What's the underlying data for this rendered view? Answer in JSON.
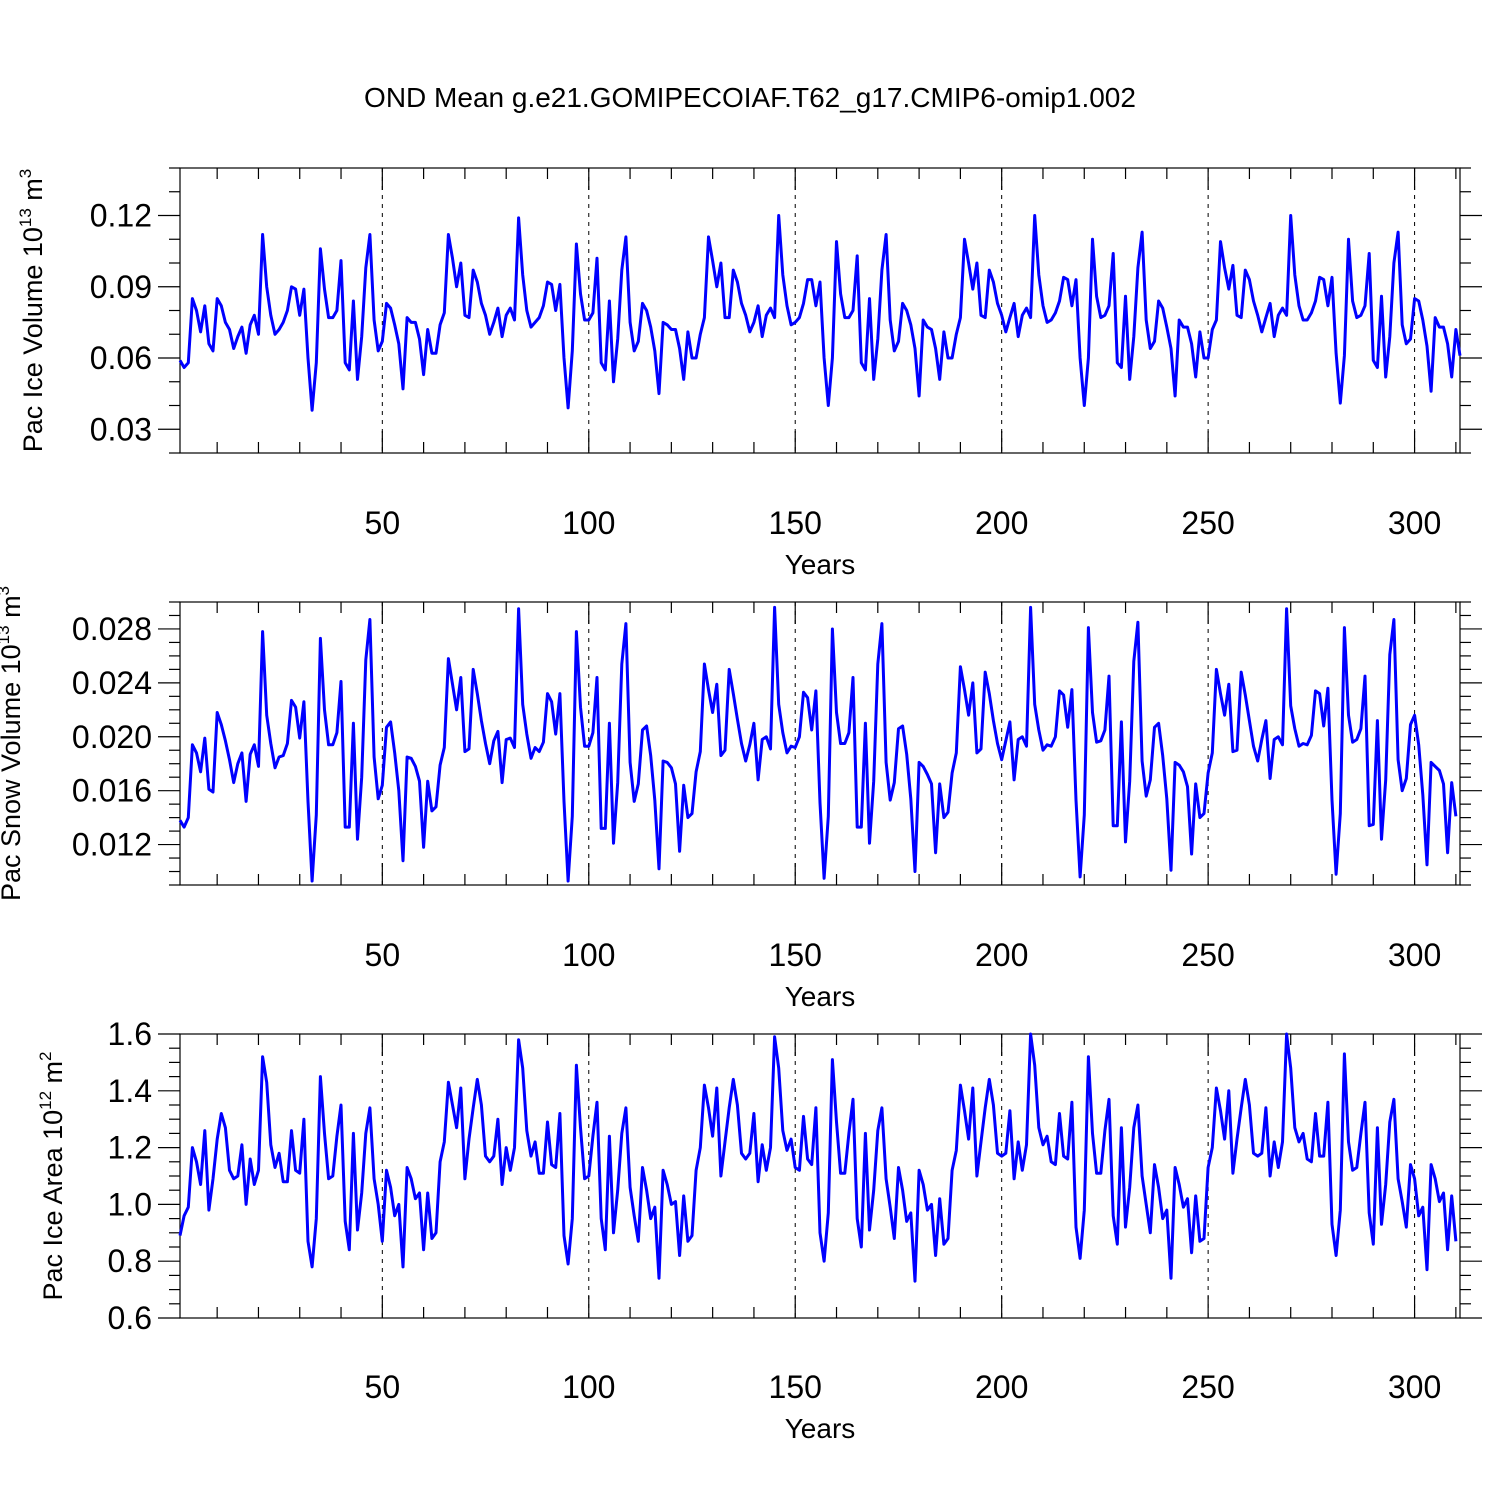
{
  "title": "OND Mean g.e21.GOMIPECOIAF.T62_g17.CMIP6-omip1.002",
  "colors": {
    "series": "#0000ff",
    "axis": "#000000"
  },
  "chart_data": [
    {
      "type": "line",
      "name": "pac-ice-volume",
      "ylabel": {
        "main": "Pac Ice Volume 10",
        "exp": "13",
        "unit": " m",
        "unit_exp": "3"
      },
      "xlabel": "Years",
      "xlim": [
        1,
        311
      ],
      "ylim": [
        0.02,
        0.14
      ],
      "xticks": [
        50,
        100,
        150,
        200,
        250,
        300
      ],
      "xtick_labels": [
        "50",
        "100",
        "150",
        "200",
        "250",
        "300"
      ],
      "yticks": [
        0.03,
        0.06,
        0.09,
        0.12
      ],
      "ytick_labels": [
        "0.03",
        "0.06",
        "0.09",
        "0.12"
      ],
      "y_minor_step": 0.01,
      "x_minor_step": 10,
      "grid": "dashed vertical at major x ticks",
      "x_start": 1,
      "values": [
        0.059,
        0.056,
        0.058,
        0.085,
        0.08,
        0.071,
        0.082,
        0.066,
        0.063,
        0.085,
        0.082,
        0.075,
        0.072,
        0.064,
        0.069,
        0.073,
        0.062,
        0.074,
        0.078,
        0.07,
        0.112,
        0.09,
        0.078,
        0.07,
        0.072,
        0.075,
        0.08,
        0.09,
        0.089,
        0.078,
        0.089,
        0.06,
        0.038,
        0.058,
        0.106,
        0.089,
        0.077,
        0.077,
        0.08,
        0.101,
        0.058,
        0.055,
        0.084,
        0.051,
        0.069,
        0.098,
        0.112,
        0.076,
        0.063,
        0.067,
        0.083,
        0.081,
        0.074,
        0.066,
        0.047,
        0.077,
        0.075,
        0.075,
        0.068,
        0.053,
        0.072,
        0.062,
        0.062,
        0.074,
        0.079,
        0.112,
        0.102,
        0.09,
        0.1,
        0.078,
        0.077,
        0.097,
        0.092,
        0.083,
        0.078,
        0.07,
        0.075,
        0.081,
        0.069,
        0.078,
        0.081,
        0.076,
        0.119,
        0.095,
        0.08,
        0.073,
        0.075,
        0.077,
        0.082,
        0.092,
        0.091,
        0.08,
        0.091,
        0.06,
        0.039,
        0.063,
        0.108,
        0.087,
        0.076,
        0.076,
        0.079,
        0.102,
        0.058,
        0.055,
        0.084,
        0.05,
        0.068,
        0.097,
        0.111,
        0.075,
        0.063,
        0.067,
        0.083,
        0.08,
        0.073,
        0.063,
        0.045,
        0.075,
        0.074,
        0.072,
        0.072,
        0.064,
        0.051,
        0.071,
        0.06,
        0.06,
        0.07,
        0.077,
        0.111,
        0.101,
        0.09,
        0.1,
        0.077,
        0.077,
        0.097,
        0.092,
        0.083,
        0.078,
        0.071,
        0.075,
        0.082,
        0.069,
        0.078,
        0.081,
        0.077,
        0.12,
        0.095,
        0.082,
        0.074,
        0.075,
        0.077,
        0.083,
        0.093,
        0.093,
        0.082,
        0.092,
        0.06,
        0.04,
        0.06,
        0.109,
        0.087,
        0.077,
        0.077,
        0.08,
        0.103,
        0.058,
        0.055,
        0.085,
        0.051,
        0.068,
        0.097,
        0.112,
        0.076,
        0.063,
        0.067,
        0.083,
        0.08,
        0.074,
        0.064,
        0.044,
        0.076,
        0.073,
        0.072,
        0.064,
        0.051,
        0.071,
        0.06,
        0.06,
        0.07,
        0.077,
        0.11,
        0.1,
        0.089,
        0.1,
        0.078,
        0.077,
        0.097,
        0.092,
        0.083,
        0.078,
        0.071,
        0.077,
        0.083,
        0.069,
        0.078,
        0.081,
        0.077,
        0.12,
        0.095,
        0.082,
        0.075,
        0.076,
        0.079,
        0.084,
        0.094,
        0.093,
        0.082,
        0.093,
        0.06,
        0.04,
        0.06,
        0.11,
        0.086,
        0.077,
        0.078,
        0.082,
        0.104,
        0.058,
        0.056,
        0.086,
        0.051,
        0.069,
        0.098,
        0.113,
        0.076,
        0.064,
        0.067,
        0.084,
        0.081,
        0.073,
        0.064,
        0.044,
        0.076,
        0.073,
        0.073,
        0.066,
        0.052,
        0.071,
        0.06,
        0.06,
        0.072,
        0.076,
        0.109,
        0.098,
        0.089,
        0.099,
        0.078,
        0.077,
        0.097,
        0.093,
        0.084,
        0.078,
        0.071,
        0.077,
        0.083,
        0.069,
        0.078,
        0.081,
        0.078,
        0.12,
        0.095,
        0.082,
        0.076,
        0.076,
        0.079,
        0.084,
        0.094,
        0.093,
        0.082,
        0.094,
        0.062,
        0.041,
        0.061,
        0.11,
        0.084,
        0.077,
        0.078,
        0.082,
        0.104,
        0.059,
        0.056,
        0.086,
        0.052,
        0.069,
        0.1,
        0.113,
        0.074,
        0.066,
        0.068,
        0.085,
        0.084,
        0.076,
        0.065,
        0.046,
        0.077,
        0.073,
        0.073,
        0.066,
        0.052,
        0.072,
        0.061
      ]
    },
    {
      "type": "line",
      "name": "pac-snow-volume",
      "ylabel": {
        "main": "Pac Snow Volume 10",
        "exp": "13",
        "unit": " m",
        "unit_exp": "3"
      },
      "xlabel": "Years",
      "xlim": [
        1,
        311
      ],
      "ylim": [
        0.009,
        0.03
      ],
      "xticks": [
        50,
        100,
        150,
        200,
        250,
        300
      ],
      "xtick_labels": [
        "50",
        "100",
        "150",
        "200",
        "250",
        "300"
      ],
      "yticks": [
        0.012,
        0.016,
        0.02,
        0.024,
        0.028
      ],
      "ytick_labels": [
        "0.012",
        "0.016",
        "0.020",
        "0.024",
        "0.028"
      ],
      "y_minor_step": 0.001,
      "x_minor_step": 10,
      "grid": "dashed vertical at major x ticks",
      "x_start": 1,
      "values": [
        0.0138,
        0.0133,
        0.014,
        0.0194,
        0.0188,
        0.0174,
        0.0199,
        0.0161,
        0.0159,
        0.0218,
        0.0209,
        0.0197,
        0.0183,
        0.0166,
        0.018,
        0.0188,
        0.0152,
        0.0187,
        0.0194,
        0.0178,
        0.0278,
        0.0216,
        0.0195,
        0.0177,
        0.0185,
        0.0186,
        0.0195,
        0.0227,
        0.0222,
        0.0199,
        0.0226,
        0.0152,
        0.0093,
        0.0142,
        0.0273,
        0.022,
        0.0194,
        0.0194,
        0.0203,
        0.0241,
        0.0133,
        0.0133,
        0.021,
        0.0124,
        0.017,
        0.0257,
        0.0287,
        0.0185,
        0.0154,
        0.0164,
        0.0207,
        0.0211,
        0.0188,
        0.016,
        0.0108,
        0.0185,
        0.0184,
        0.0178,
        0.0167,
        0.0118,
        0.0167,
        0.0145,
        0.0148,
        0.0179,
        0.0192,
        0.0258,
        0.0239,
        0.022,
        0.0244,
        0.0189,
        0.0191,
        0.025,
        0.0232,
        0.0212,
        0.0195,
        0.018,
        0.0197,
        0.0204,
        0.0166,
        0.0198,
        0.0199,
        0.0192,
        0.0295,
        0.0224,
        0.0202,
        0.0184,
        0.0192,
        0.0189,
        0.0196,
        0.0232,
        0.0226,
        0.0202,
        0.0232,
        0.0152,
        0.0093,
        0.0141,
        0.0278,
        0.0222,
        0.0193,
        0.0193,
        0.0203,
        0.0244,
        0.0132,
        0.0132,
        0.021,
        0.0121,
        0.0166,
        0.0254,
        0.0284,
        0.0181,
        0.0152,
        0.0165,
        0.0205,
        0.0208,
        0.0186,
        0.0153,
        0.0102,
        0.0182,
        0.0181,
        0.0177,
        0.0165,
        0.0115,
        0.0164,
        0.014,
        0.0143,
        0.0174,
        0.0189,
        0.0254,
        0.0235,
        0.0218,
        0.0239,
        0.0186,
        0.019,
        0.025,
        0.0232,
        0.0213,
        0.0195,
        0.0182,
        0.0194,
        0.021,
        0.0168,
        0.0198,
        0.02,
        0.0191,
        0.0296,
        0.0224,
        0.0203,
        0.0188,
        0.0193,
        0.0192,
        0.02,
        0.0233,
        0.0229,
        0.0205,
        0.0234,
        0.0151,
        0.0095,
        0.0141,
        0.028,
        0.0218,
        0.0195,
        0.0195,
        0.0203,
        0.0244,
        0.0133,
        0.0133,
        0.021,
        0.0121,
        0.0167,
        0.0254,
        0.0284,
        0.0181,
        0.0153,
        0.0166,
        0.0206,
        0.0208,
        0.0187,
        0.0154,
        0.01,
        0.0181,
        0.0178,
        0.0172,
        0.0165,
        0.0114,
        0.0165,
        0.014,
        0.0144,
        0.0173,
        0.0188,
        0.0252,
        0.0235,
        0.0216,
        0.024,
        0.0188,
        0.0191,
        0.0248,
        0.0232,
        0.0212,
        0.0195,
        0.0183,
        0.0197,
        0.0211,
        0.0168,
        0.0198,
        0.02,
        0.0193,
        0.0296,
        0.0224,
        0.0205,
        0.019,
        0.0194,
        0.0193,
        0.02,
        0.0234,
        0.0231,
        0.0207,
        0.0235,
        0.0153,
        0.0096,
        0.0142,
        0.0281,
        0.0218,
        0.0196,
        0.0197,
        0.0205,
        0.0245,
        0.0134,
        0.0134,
        0.0211,
        0.0122,
        0.0167,
        0.0256,
        0.0285,
        0.0182,
        0.0156,
        0.0168,
        0.0207,
        0.021,
        0.0186,
        0.0154,
        0.0101,
        0.0181,
        0.0179,
        0.0174,
        0.0163,
        0.0113,
        0.0165,
        0.014,
        0.0143,
        0.0173,
        0.0188,
        0.025,
        0.0232,
        0.0216,
        0.0239,
        0.0189,
        0.019,
        0.0248,
        0.0231,
        0.0212,
        0.0193,
        0.0182,
        0.0198,
        0.0212,
        0.0169,
        0.0198,
        0.02,
        0.0194,
        0.0295,
        0.0223,
        0.0206,
        0.0193,
        0.0195,
        0.0194,
        0.0201,
        0.0234,
        0.0232,
        0.0208,
        0.0236,
        0.0153,
        0.0098,
        0.0143,
        0.0281,
        0.0216,
        0.0196,
        0.0198,
        0.0206,
        0.0245,
        0.0134,
        0.0135,
        0.0212,
        0.0124,
        0.0168,
        0.0261,
        0.0287,
        0.0183,
        0.016,
        0.0169,
        0.0209,
        0.0216,
        0.0194,
        0.0157,
        0.0105,
        0.0181,
        0.0178,
        0.0175,
        0.0165,
        0.0114,
        0.0166,
        0.0141
      ]
    },
    {
      "type": "line",
      "name": "pac-ice-area",
      "ylabel": {
        "main": "Pac Ice Area 10",
        "exp": "12",
        "unit": " m",
        "unit_exp": "2"
      },
      "xlabel": "Years",
      "xlim": [
        1,
        311
      ],
      "ylim": [
        0.6,
        1.6
      ],
      "xticks": [
        50,
        100,
        150,
        200,
        250,
        300
      ],
      "xtick_labels": [
        "50",
        "100",
        "150",
        "200",
        "250",
        "300"
      ],
      "yticks": [
        0.6,
        0.8,
        1.0,
        1.2,
        1.4,
        1.6
      ],
      "ytick_labels": [
        "0.6",
        "0.8",
        "1.0",
        "1.2",
        "1.4",
        "1.6"
      ],
      "y_minor_step": 0.05,
      "x_minor_step": 10,
      "grid": "dashed vertical at major x ticks",
      "x_start": 1,
      "values": [
        0.89,
        0.96,
        0.99,
        1.2,
        1.15,
        1.07,
        1.26,
        0.98,
        1.09,
        1.23,
        1.32,
        1.27,
        1.12,
        1.09,
        1.1,
        1.21,
        1.0,
        1.16,
        1.07,
        1.12,
        1.52,
        1.43,
        1.21,
        1.13,
        1.18,
        1.08,
        1.08,
        1.26,
        1.12,
        1.11,
        1.3,
        0.87,
        0.78,
        0.95,
        1.45,
        1.25,
        1.09,
        1.1,
        1.24,
        1.35,
        0.94,
        0.84,
        1.25,
        0.91,
        1.04,
        1.25,
        1.34,
        1.09,
        1.0,
        0.87,
        1.12,
        1.06,
        0.96,
        1.0,
        0.78,
        1.13,
        1.09,
        1.02,
        1.04,
        0.84,
        1.04,
        0.88,
        0.9,
        1.15,
        1.22,
        1.43,
        1.35,
        1.27,
        1.41,
        1.09,
        1.23,
        1.34,
        1.44,
        1.35,
        1.17,
        1.15,
        1.17,
        1.3,
        1.07,
        1.2,
        1.12,
        1.2,
        1.58,
        1.48,
        1.26,
        1.17,
        1.22,
        1.11,
        1.11,
        1.29,
        1.14,
        1.13,
        1.32,
        0.89,
        0.79,
        0.95,
        1.49,
        1.27,
        1.09,
        1.1,
        1.24,
        1.36,
        0.95,
        0.84,
        1.24,
        0.9,
        1.05,
        1.25,
        1.34,
        1.06,
        0.96,
        0.87,
        1.13,
        1.05,
        0.95,
        0.99,
        0.74,
        1.12,
        1.07,
        1.0,
        1.01,
        0.82,
        1.03,
        0.87,
        0.89,
        1.12,
        1.2,
        1.42,
        1.34,
        1.24,
        1.41,
        1.1,
        1.22,
        1.34,
        1.44,
        1.35,
        1.18,
        1.16,
        1.18,
        1.32,
        1.08,
        1.21,
        1.12,
        1.2,
        1.59,
        1.48,
        1.26,
        1.19,
        1.23,
        1.13,
        1.12,
        1.31,
        1.16,
        1.14,
        1.34,
        0.9,
        0.8,
        0.97,
        1.51,
        1.29,
        1.11,
        1.11,
        1.25,
        1.37,
        0.95,
        0.85,
        1.25,
        0.91,
        1.05,
        1.26,
        1.34,
        1.09,
        0.99,
        0.88,
        1.13,
        1.05,
        0.94,
        0.97,
        0.73,
        1.12,
        1.07,
        0.98,
        1.0,
        0.82,
        1.02,
        0.86,
        0.88,
        1.12,
        1.19,
        1.42,
        1.33,
        1.23,
        1.41,
        1.1,
        1.22,
        1.34,
        1.44,
        1.35,
        1.18,
        1.17,
        1.18,
        1.33,
        1.09,
        1.22,
        1.12,
        1.21,
        1.6,
        1.49,
        1.27,
        1.21,
        1.24,
        1.15,
        1.14,
        1.32,
        1.17,
        1.16,
        1.36,
        0.92,
        0.81,
        0.98,
        1.52,
        1.25,
        1.11,
        1.11,
        1.26,
        1.37,
        0.96,
        0.86,
        1.27,
        0.92,
        1.06,
        1.27,
        1.35,
        1.1,
        1.0,
        0.9,
        1.14,
        1.06,
        0.95,
        0.98,
        0.74,
        1.13,
        1.07,
        0.99,
        1.02,
        0.83,
        1.03,
        0.87,
        0.88,
        1.13,
        1.2,
        1.41,
        1.33,
        1.23,
        1.4,
        1.11,
        1.23,
        1.34,
        1.44,
        1.35,
        1.18,
        1.17,
        1.18,
        1.34,
        1.1,
        1.22,
        1.13,
        1.22,
        1.6,
        1.48,
        1.27,
        1.22,
        1.25,
        1.16,
        1.15,
        1.32,
        1.17,
        1.17,
        1.36,
        0.93,
        0.82,
        0.98,
        1.53,
        1.22,
        1.12,
        1.13,
        1.25,
        1.36,
        0.97,
        0.86,
        1.27,
        0.93,
        1.07,
        1.29,
        1.37,
        1.09,
        1.01,
        0.92,
        1.14,
        1.09,
        0.96,
        0.99,
        0.77,
        1.14,
        1.09,
        1.01,
        1.04,
        0.84,
        1.03,
        0.87
      ]
    }
  ]
}
